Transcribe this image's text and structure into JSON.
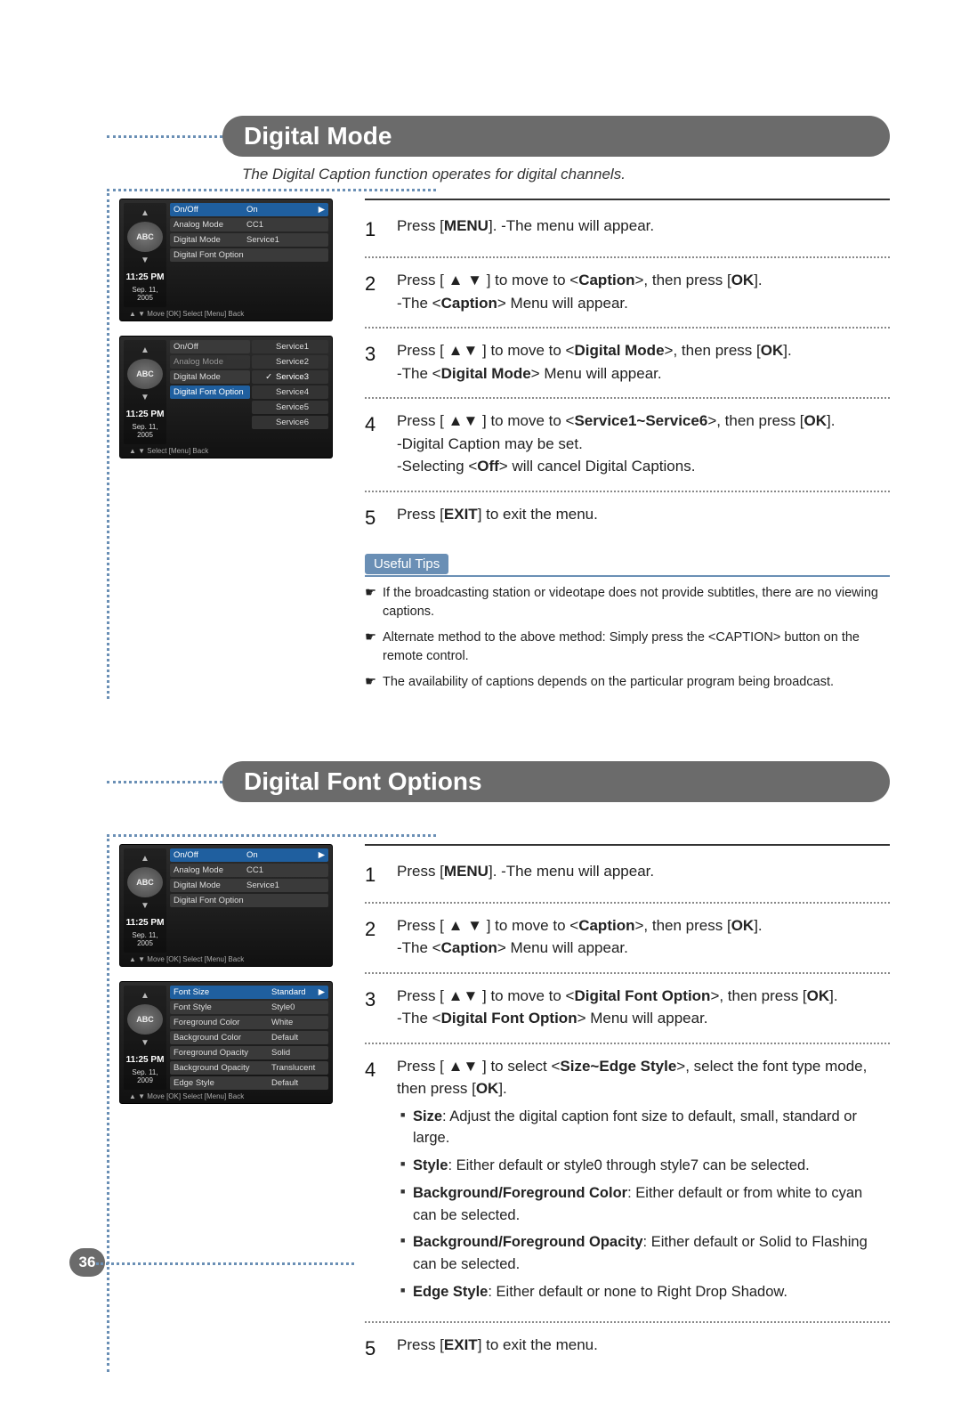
{
  "page_number": "36",
  "section1": {
    "title": "Digital Mode",
    "subtitle": "The Digital Caption function operates for digital channels.",
    "steps": {
      "s1": "Press [<b>MENU</b>]. -The menu will appear.",
      "s2": "Press [ ▲ ▼ ] to move to <<b>Caption</b>>, then press [<b>OK</b>].<br>-The <<b>Caption</b>> Menu will appear.",
      "s3": "Press [ ▲▼ ] to move to <<b>Digital Mode</b>>, then press [<b>OK</b>].<br>-The <<b>Digital Mode</b>> Menu will appear.",
      "s4": "Press [ ▲▼ ] to move to <<b>Service1~Service6</b>>, then press [<b>OK</b>].<br>-Digital Caption may be set.<br>-Selecting <<b>Off</b>> will cancel Digital Captions.",
      "s5": "Press [<b>EXIT</b>] to exit the menu."
    },
    "tips_label": "Useful Tips",
    "tips": [
      "If the broadcasting station or videotape does not provide subtitles, there are no viewing captions.",
      "Alternate method to the above method: Simply press the <CAPTION> button on the remote control.",
      "The availability of captions depends on the particular program being broadcast."
    ],
    "menu1": {
      "time": "11:25 PM",
      "date": "Sep. 11, 2005",
      "rows": [
        {
          "k": "On/Off",
          "v": "On",
          "selected": true,
          "arrow": true
        },
        {
          "k": "Analog Mode",
          "v": "CC1"
        },
        {
          "k": "Digital Mode",
          "v": "Service1"
        },
        {
          "k": "Digital Font Option",
          "v": ""
        }
      ],
      "foot": "▲ ▼ Move  [OK] Select  [Menu] Back"
    },
    "menu2": {
      "time": "11:25 PM",
      "date": "Sep. 11, 2005",
      "top_rows": [
        {
          "k": "On/Off",
          "v": ""
        },
        {
          "k": "Analog Mode",
          "v": "",
          "dim": true
        },
        {
          "k": "Digital Mode",
          "v": ""
        },
        {
          "k": "Digital Font Option",
          "v": "",
          "selected": true
        }
      ],
      "services": [
        "Service1",
        "Service2",
        "Service3",
        "Service4",
        "Service5",
        "Service6"
      ],
      "selected_service_index": 2,
      "foot": "▲ ▼ Select  [Menu] Back"
    }
  },
  "section2": {
    "title": "Digital Font Options",
    "steps": {
      "s1": "Press [<b>MENU</b>]. -The menu will appear.",
      "s2": "Press [ ▲ ▼ ] to move to <<b>Caption</b>>, then press [<b>OK</b>].<br>-The <<b>Caption</b>> Menu will appear.",
      "s3": "Press [ ▲▼ ] to move to <<b>Digital Font Option</b>>, then press [<b>OK</b>].<br>-The <<b>Digital Font Option</b>> Menu will appear.",
      "s4": "Press [ ▲▼ ] to select <<b>Size~Edge Style</b>>, select the font type mode, then press [<b>OK</b>].",
      "s4_bullets": [
        "<b>Size</b>: Adjust the digital caption font size to default, small, standard or large.",
        "<b>Style</b>: Either default or style0 through style7 can be selected.",
        "<b>Background/Foreground Color</b>: Either default or from white to cyan can be selected.",
        "<b>Background/Foreground Opacity</b>: Either default or Solid to Flashing can be selected.",
        "<b>Edge Style</b>: Either default or none to Right Drop Shadow."
      ],
      "s5": "Press [<b>EXIT</b>] to exit the menu."
    },
    "menu1": {
      "time": "11:25 PM",
      "date": "Sep. 11, 2005",
      "rows": [
        {
          "k": "On/Off",
          "v": "On",
          "selected": true,
          "arrow": true
        },
        {
          "k": "Analog Mode",
          "v": "CC1"
        },
        {
          "k": "Digital Mode",
          "v": "Service1"
        },
        {
          "k": "Digital Font Option",
          "v": ""
        }
      ],
      "foot": "▲ ▼ Move  [OK] Select  [Menu] Back"
    },
    "menu2": {
      "time": "11:25 PM",
      "date": "Sep. 11, 2009",
      "rows": [
        {
          "k": "Font Size",
          "v": "Standard",
          "selected": true,
          "arrow": true,
          "wide": true
        },
        {
          "k": "Font Style",
          "v": "Style0",
          "wide": true
        },
        {
          "k": "Foreground Color",
          "v": "White",
          "wide": true
        },
        {
          "k": "Background Color",
          "v": "Default",
          "wide": true
        },
        {
          "k": "Foreground Opacity",
          "v": "Solid",
          "wide": true
        },
        {
          "k": "Background Opacity",
          "v": "Translucent",
          "wide": true
        },
        {
          "k": "Edge Style",
          "v": "Default",
          "wide": true
        }
      ],
      "foot": "▲ ▼ Move  [OK] Select  [Menu] Back"
    }
  },
  "sidebar_icon_text": "ABC\nCaption"
}
